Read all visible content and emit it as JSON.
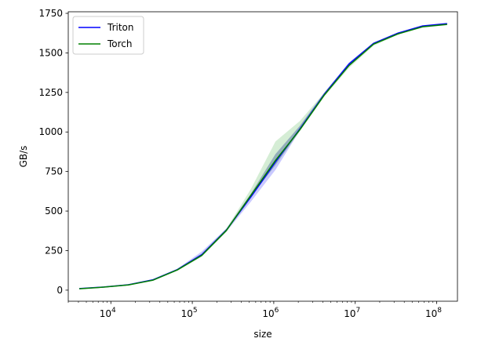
{
  "chart_data": {
    "type": "line",
    "title": "",
    "xlabel": "size",
    "ylabel": "GB/s",
    "xscale": "log",
    "xlim": [
      3000,
      180000000
    ],
    "ylim": [
      -70,
      1760
    ],
    "grid": false,
    "legend_position": "top-left",
    "x_ticks": [
      {
        "value": 10000,
        "base": "10",
        "exp": "4"
      },
      {
        "value": 100000,
        "base": "10",
        "exp": "5"
      },
      {
        "value": 1000000,
        "base": "10",
        "exp": "6"
      },
      {
        "value": 10000000,
        "base": "10",
        "exp": "7"
      },
      {
        "value": 100000000,
        "base": "10",
        "exp": "8"
      }
    ],
    "y_ticks": [
      0,
      250,
      500,
      750,
      1000,
      1250,
      1500,
      1750
    ],
    "x": [
      4096,
      8192,
      16384,
      32768,
      65536,
      131072,
      262144,
      524288,
      1048576,
      2097152,
      4194304,
      8388608,
      16777216,
      33554432,
      67108864,
      134217728
    ],
    "series": [
      {
        "name": "Triton",
        "color": "#0000ff",
        "band_color": "#8888ff",
        "values": [
          10,
          20,
          34,
          65,
          130,
          225,
          380,
          590,
          810,
          1020,
          1240,
          1430,
          1560,
          1625,
          1670,
          1685
        ],
        "lower": [
          8,
          18,
          31,
          60,
          125,
          215,
          370,
          560,
          760,
          1010,
          1230,
          1420,
          1555,
          1620,
          1665,
          1680
        ],
        "upper": [
          12,
          22,
          37,
          70,
          135,
          245,
          390,
          610,
          860,
          1040,
          1250,
          1440,
          1565,
          1630,
          1675,
          1690
        ]
      },
      {
        "name": "Torch",
        "color": "#008000",
        "band_color": "#88cc88",
        "values": [
          9,
          19,
          33,
          63,
          128,
          220,
          378,
          600,
          820,
          1015,
          1235,
          1420,
          1555,
          1620,
          1665,
          1680
        ],
        "lower": [
          7,
          17,
          30,
          58,
          122,
          212,
          368,
          590,
          790,
          1005,
          1225,
          1405,
          1545,
          1615,
          1660,
          1675
        ],
        "upper": [
          11,
          21,
          36,
          68,
          133,
          230,
          388,
          640,
          940,
          1070,
          1250,
          1435,
          1565,
          1628,
          1672,
          1686
        ]
      }
    ]
  }
}
